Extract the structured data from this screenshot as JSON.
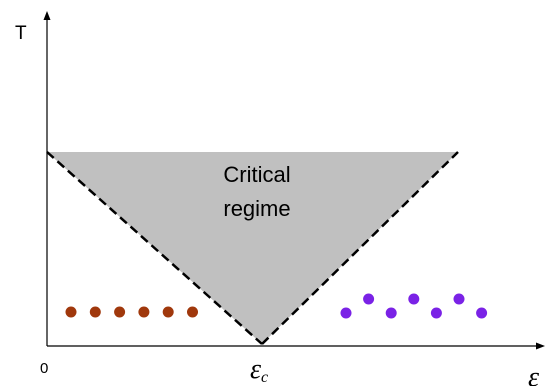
{
  "diagram": {
    "y_axis_label": "T",
    "origin_label": "0",
    "x_axis_symbol": "ε",
    "critical_point_symbol": "ε",
    "critical_point_subscript": "c",
    "region_label_line1": "Critical",
    "region_label_line2": "regime",
    "colors": {
      "region_fill": "#c0c0c0",
      "boundary": "#000000",
      "left_dots": "#a0380c",
      "right_dots": "#7a22e6"
    },
    "left_dot_count": 6,
    "right_dot_count": 7
  }
}
